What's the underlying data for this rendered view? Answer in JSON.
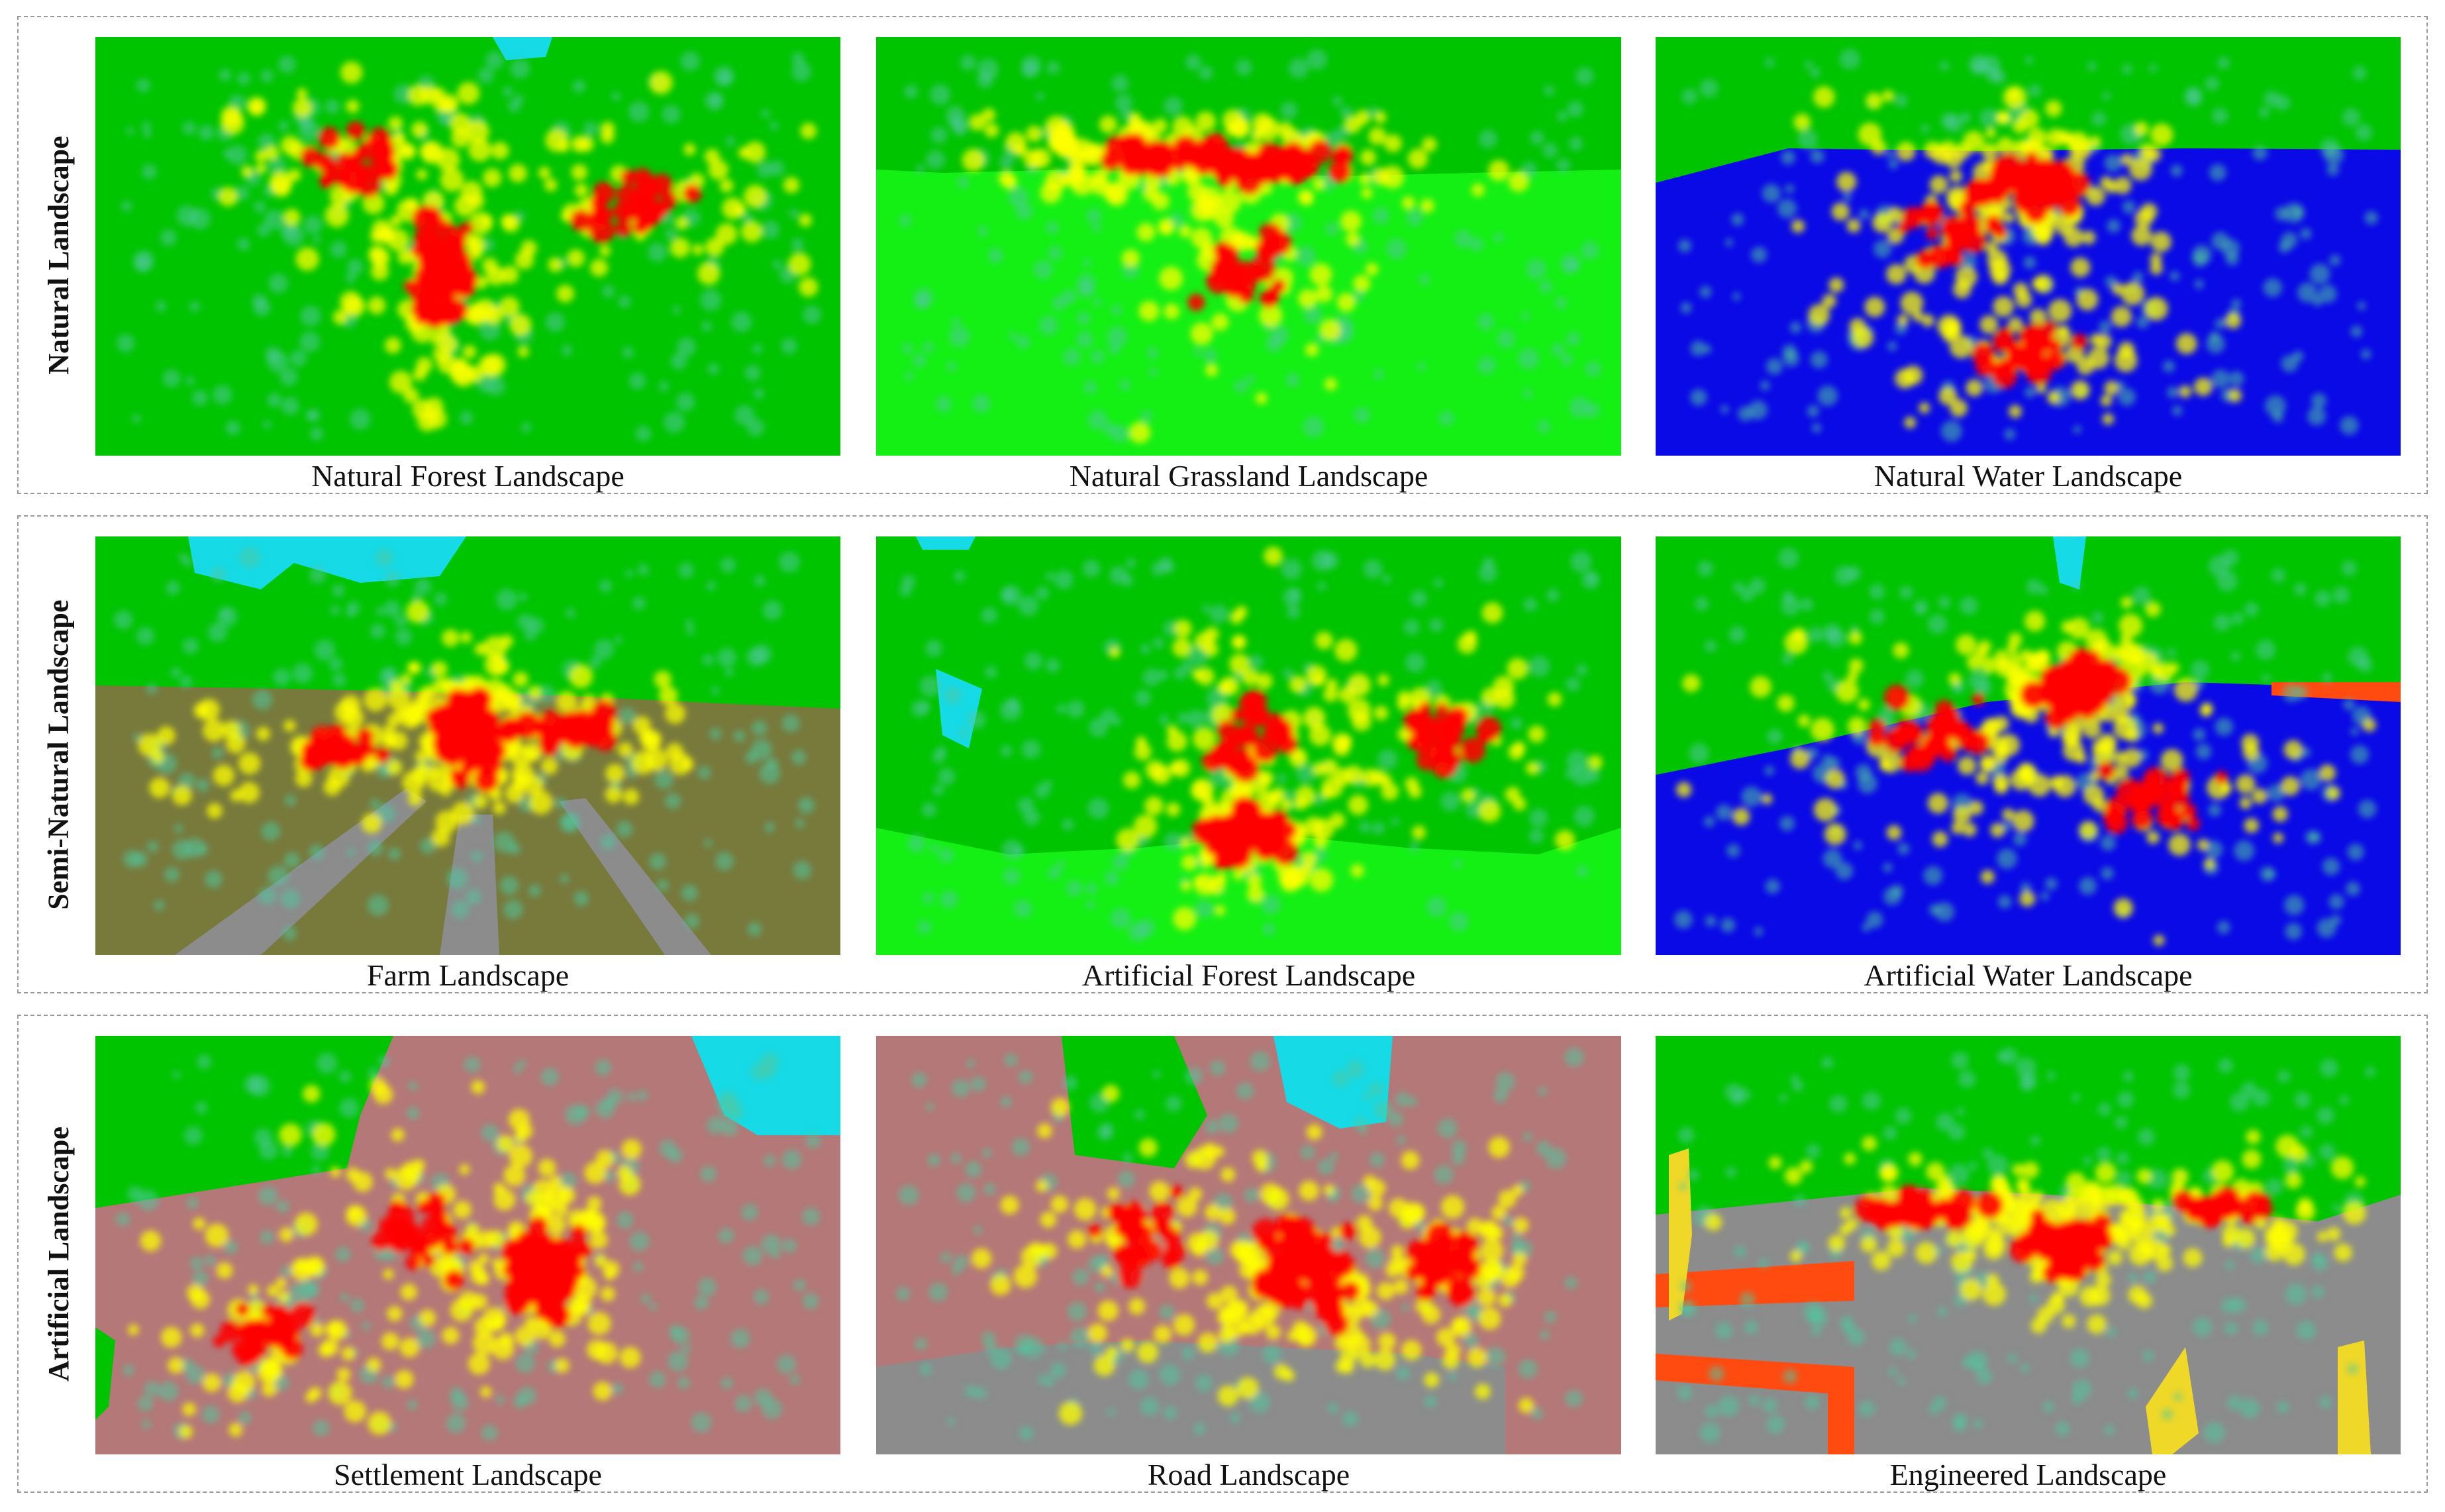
{
  "rows": [
    {
      "label": "Natural Landscape",
      "cells": [
        {
          "caption": "Natural Forest Landscape",
          "scene": "forest"
        },
        {
          "caption": "Natural Grassland Landscape",
          "scene": "grassland"
        },
        {
          "caption": "Natural Water Landscape",
          "scene": "water"
        }
      ]
    },
    {
      "label": "Semi-Natural Landscape",
      "cells": [
        {
          "caption": "Farm Landscape",
          "scene": "farm"
        },
        {
          "caption": "Artificial Forest Landscape",
          "scene": "artforest"
        },
        {
          "caption": "Artificial Water Landscape",
          "scene": "artwater"
        }
      ]
    },
    {
      "label": "Artificial  Landscape",
      "cells": [
        {
          "caption": "Settlement Landscape",
          "scene": "settlement"
        },
        {
          "caption": "Road Landscape",
          "scene": "road"
        },
        {
          "caption": "Engineered Landscape",
          "scene": "engineered"
        }
      ]
    }
  ],
  "colors": {
    "vegetation": "#00c400",
    "grass": "#14f014",
    "water": "#0a0ae6",
    "sky": "#16dbe6",
    "farmland": "#787a3c",
    "road": "#8c8c8c",
    "building": "#b47878",
    "structure": "#ff4a10",
    "yellow_object": "#f0d828",
    "fixation_high": "#ff0000",
    "fixation_mid": "#ffff00",
    "fixation_low": "#50c8a0"
  }
}
